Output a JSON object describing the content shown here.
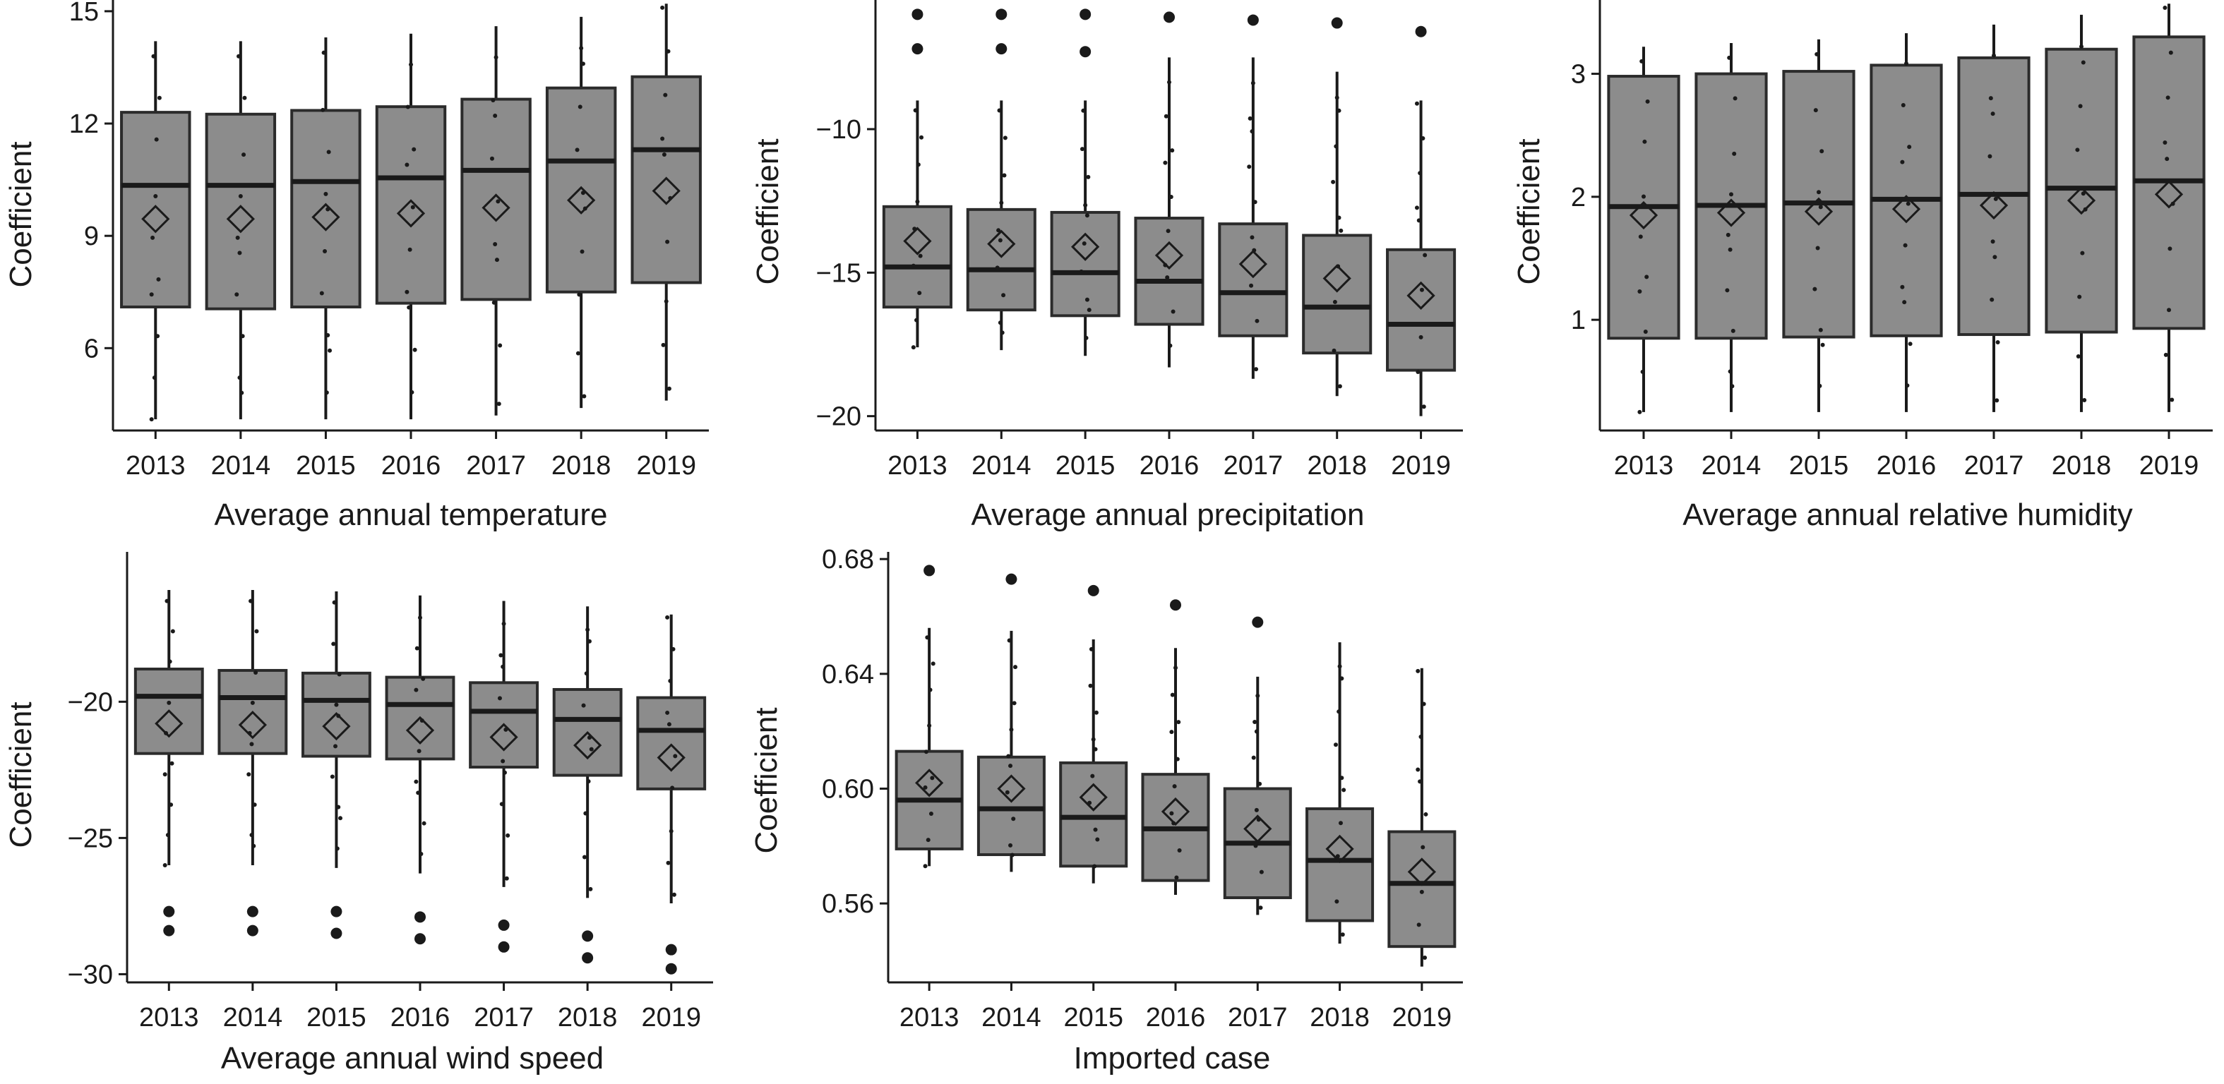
{
  "colors": {
    "box_fill": "#8c8c8c",
    "ink": "#1a1a1a"
  },
  "chart_data": [
    {
      "type": "box",
      "xlabel": "Average annual temperature",
      "ylabel": "Coefficient",
      "categories": [
        "2013",
        "2014",
        "2015",
        "2016",
        "2017",
        "2018",
        "2019"
      ],
      "ylim": [
        3.8,
        15.3
      ],
      "yticks": [
        6,
        9,
        12,
        15
      ],
      "ytick_labels": [
        "6",
        "9",
        "12",
        "15"
      ],
      "boxes": [
        {
          "q1": 7.1,
          "median": 10.35,
          "q3": 12.3,
          "mean": 9.45,
          "whisker_low": 4.1,
          "whisker_high": 14.2,
          "outliers": []
        },
        {
          "q1": 7.05,
          "median": 10.35,
          "q3": 12.25,
          "mean": 9.45,
          "whisker_low": 4.1,
          "whisker_high": 14.2,
          "outliers": []
        },
        {
          "q1": 7.1,
          "median": 10.45,
          "q3": 12.35,
          "mean": 9.5,
          "whisker_low": 4.1,
          "whisker_high": 14.3,
          "outliers": []
        },
        {
          "q1": 7.2,
          "median": 10.55,
          "q3": 12.45,
          "mean": 9.6,
          "whisker_low": 4.1,
          "whisker_high": 14.4,
          "outliers": []
        },
        {
          "q1": 7.3,
          "median": 10.75,
          "q3": 12.65,
          "mean": 9.75,
          "whisker_low": 4.2,
          "whisker_high": 14.6,
          "outliers": []
        },
        {
          "q1": 7.5,
          "median": 11.0,
          "q3": 12.95,
          "mean": 9.95,
          "whisker_low": 4.4,
          "whisker_high": 14.85,
          "outliers": []
        },
        {
          "q1": 7.75,
          "median": 11.3,
          "q3": 13.25,
          "mean": 10.2,
          "whisker_low": 4.6,
          "whisker_high": 15.2,
          "outliers": []
        }
      ]
    },
    {
      "type": "box",
      "xlabel": "Average annual precipitation",
      "ylabel": "Coefficient",
      "categories": [
        "2013",
        "2014",
        "2015",
        "2016",
        "2017",
        "2018",
        "2019"
      ],
      "ylim": [
        -20.5,
        -5.5
      ],
      "yticks": [
        -20,
        -15,
        -10
      ],
      "ytick_labels": [
        "−20",
        "−15",
        "−10"
      ],
      "boxes": [
        {
          "q1": -16.2,
          "median": -14.8,
          "q3": -12.7,
          "mean": -13.9,
          "whisker_low": -17.6,
          "whisker_high": -9.0,
          "outliers": [
            -6.0,
            -7.2
          ]
        },
        {
          "q1": -16.3,
          "median": -14.9,
          "q3": -12.8,
          "mean": -14.0,
          "whisker_low": -17.7,
          "whisker_high": -9.0,
          "outliers": [
            -6.0,
            -7.2
          ]
        },
        {
          "q1": -16.5,
          "median": -15.0,
          "q3": -12.9,
          "mean": -14.1,
          "whisker_low": -17.9,
          "whisker_high": -9.0,
          "outliers": [
            -6.0,
            -7.3
          ]
        },
        {
          "q1": -16.8,
          "median": -15.3,
          "q3": -13.1,
          "mean": -14.4,
          "whisker_low": -18.3,
          "whisker_high": -7.5,
          "outliers": [
            -6.1
          ]
        },
        {
          "q1": -17.2,
          "median": -15.7,
          "q3": -13.3,
          "mean": -14.7,
          "whisker_low": -18.7,
          "whisker_high": -7.5,
          "outliers": [
            -6.2
          ]
        },
        {
          "q1": -17.8,
          "median": -16.2,
          "q3": -13.7,
          "mean": -15.2,
          "whisker_low": -19.3,
          "whisker_high": -8.0,
          "outliers": [
            -6.3
          ]
        },
        {
          "q1": -18.4,
          "median": -16.8,
          "q3": -14.2,
          "mean": -15.8,
          "whisker_low": -20.0,
          "whisker_high": -9.0,
          "outliers": [
            -6.6
          ]
        }
      ]
    },
    {
      "type": "box",
      "xlabel": "Average annual relative humidity",
      "ylabel": "Coefficient",
      "categories": [
        "2013",
        "2014",
        "2015",
        "2016",
        "2017",
        "2018",
        "2019"
      ],
      "ylim": [
        0.1,
        3.6
      ],
      "yticks": [
        1,
        2,
        3
      ],
      "ytick_labels": [
        "1",
        "2",
        "3"
      ],
      "boxes": [
        {
          "q1": 0.85,
          "median": 1.92,
          "q3": 2.98,
          "mean": 1.85,
          "whisker_low": 0.25,
          "whisker_high": 3.22,
          "outliers": []
        },
        {
          "q1": 0.85,
          "median": 1.93,
          "q3": 3.0,
          "mean": 1.87,
          "whisker_low": 0.25,
          "whisker_high": 3.25,
          "outliers": []
        },
        {
          "q1": 0.86,
          "median": 1.95,
          "q3": 3.02,
          "mean": 1.88,
          "whisker_low": 0.25,
          "whisker_high": 3.28,
          "outliers": []
        },
        {
          "q1": 0.87,
          "median": 1.98,
          "q3": 3.07,
          "mean": 1.9,
          "whisker_low": 0.25,
          "whisker_high": 3.33,
          "outliers": []
        },
        {
          "q1": 0.88,
          "median": 2.02,
          "q3": 3.13,
          "mean": 1.93,
          "whisker_low": 0.25,
          "whisker_high": 3.4,
          "outliers": []
        },
        {
          "q1": 0.9,
          "median": 2.07,
          "q3": 3.2,
          "mean": 1.97,
          "whisker_low": 0.25,
          "whisker_high": 3.48,
          "outliers": []
        },
        {
          "q1": 0.93,
          "median": 2.13,
          "q3": 3.3,
          "mean": 2.02,
          "whisker_low": 0.25,
          "whisker_high": 3.57,
          "outliers": []
        }
      ]
    },
    {
      "type": "box",
      "xlabel": "Average annual wind speed",
      "ylabel": "Coefficient",
      "categories": [
        "2013",
        "2014",
        "2015",
        "2016",
        "2017",
        "2018",
        "2019"
      ],
      "ylim": [
        -30.3,
        -14.5
      ],
      "yticks": [
        -30,
        -25,
        -20
      ],
      "ytick_labels": [
        "−30",
        "−25",
        "−20"
      ],
      "boxes": [
        {
          "q1": -21.9,
          "median": -19.8,
          "q3": -18.8,
          "mean": -20.8,
          "whisker_low": -26.0,
          "whisker_high": -15.9,
          "outliers": [
            -27.7,
            -28.4
          ]
        },
        {
          "q1": -21.9,
          "median": -19.85,
          "q3": -18.85,
          "mean": -20.85,
          "whisker_low": -26.0,
          "whisker_high": -15.9,
          "outliers": [
            -27.7,
            -28.4
          ]
        },
        {
          "q1": -22.0,
          "median": -19.95,
          "q3": -18.95,
          "mean": -20.9,
          "whisker_low": -26.1,
          "whisker_high": -15.95,
          "outliers": [
            -27.7,
            -28.5
          ]
        },
        {
          "q1": -22.1,
          "median": -20.1,
          "q3": -19.1,
          "mean": -21.05,
          "whisker_low": -26.3,
          "whisker_high": -16.1,
          "outliers": [
            -27.9,
            -28.7
          ]
        },
        {
          "q1": -22.4,
          "median": -20.35,
          "q3": -19.3,
          "mean": -21.3,
          "whisker_low": -26.8,
          "whisker_high": -16.3,
          "outliers": [
            -28.2,
            -29.0
          ]
        },
        {
          "q1": -22.7,
          "median": -20.65,
          "q3": -19.55,
          "mean": -21.6,
          "whisker_low": -27.2,
          "whisker_high": -16.5,
          "outliers": [
            -28.6,
            -29.4
          ]
        },
        {
          "q1": -23.2,
          "median": -21.05,
          "q3": -19.85,
          "mean": -22.05,
          "whisker_low": -27.4,
          "whisker_high": -16.8,
          "outliers": [
            -29.1,
            -29.8
          ]
        }
      ]
    },
    {
      "type": "box",
      "xlabel": "Imported case",
      "ylabel": "Coefficient",
      "categories": [
        "2013",
        "2014",
        "2015",
        "2016",
        "2017",
        "2018",
        "2019"
      ],
      "ylim": [
        0.5325,
        0.6825
      ],
      "yticks": [
        0.56,
        0.6,
        0.64,
        0.68
      ],
      "ytick_labels": [
        "0.56",
        "0.60",
        "0.64",
        "0.68"
      ],
      "boxes": [
        {
          "q1": 0.579,
          "median": 0.596,
          "q3": 0.613,
          "mean": 0.602,
          "whisker_low": 0.573,
          "whisker_high": 0.656,
          "outliers": [
            0.676
          ]
        },
        {
          "q1": 0.577,
          "median": 0.593,
          "q3": 0.611,
          "mean": 0.6,
          "whisker_low": 0.571,
          "whisker_high": 0.655,
          "outliers": [
            0.673
          ]
        },
        {
          "q1": 0.573,
          "median": 0.59,
          "q3": 0.609,
          "mean": 0.597,
          "whisker_low": 0.567,
          "whisker_high": 0.652,
          "outliers": [
            0.669
          ]
        },
        {
          "q1": 0.568,
          "median": 0.586,
          "q3": 0.605,
          "mean": 0.592,
          "whisker_low": 0.563,
          "whisker_high": 0.649,
          "outliers": [
            0.664
          ]
        },
        {
          "q1": 0.562,
          "median": 0.581,
          "q3": 0.6,
          "mean": 0.586,
          "whisker_low": 0.556,
          "whisker_high": 0.639,
          "outliers": [
            0.658
          ]
        },
        {
          "q1": 0.554,
          "median": 0.575,
          "q3": 0.593,
          "mean": 0.579,
          "whisker_low": 0.546,
          "whisker_high": 0.651,
          "outliers": []
        },
        {
          "q1": 0.545,
          "median": 0.567,
          "q3": 0.585,
          "mean": 0.571,
          "whisker_low": 0.538,
          "whisker_high": 0.642,
          "outliers": []
        }
      ]
    }
  ]
}
